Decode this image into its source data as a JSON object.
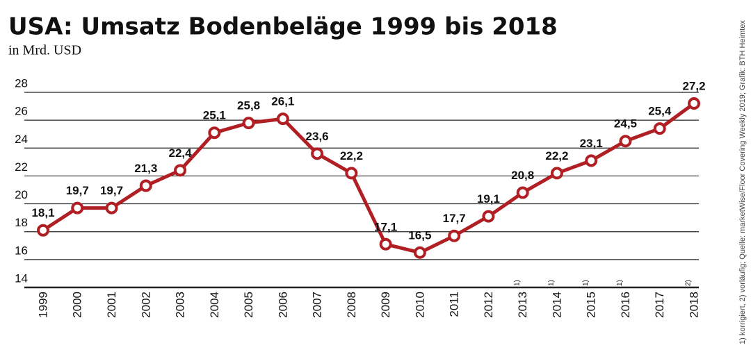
{
  "chart_data": {
    "type": "line",
    "title": "USA: Umsatz Bodenbeläge 1999 bis 2018",
    "subtitle": "in Mrd. USD",
    "source": "1) korrigiert, 2) vorläufig; Quelle: marketWise/Floor Covering Weekly 2019; Grafik: BTH Heimtex",
    "categories": [
      "1999",
      "2000",
      "2001",
      "2002",
      "2003",
      "2004",
      "2005",
      "2006",
      "2007",
      "2008",
      "2009",
      "2010",
      "2011",
      "2012",
      "2013",
      "2014",
      "2015",
      "2016",
      "2017",
      "2018"
    ],
    "category_notes": [
      null,
      null,
      null,
      null,
      null,
      null,
      null,
      null,
      null,
      null,
      null,
      null,
      null,
      null,
      "1)",
      "1)",
      "1)",
      "1)",
      null,
      "2)"
    ],
    "values": [
      18.1,
      19.7,
      19.7,
      21.3,
      22.4,
      25.1,
      25.8,
      26.1,
      23.6,
      22.2,
      17.1,
      16.5,
      17.7,
      19.1,
      20.8,
      22.2,
      23.1,
      24.5,
      25.4,
      27.2
    ],
    "value_labels": [
      "18,1",
      "19,7",
      "19,7",
      "21,3",
      "22,4",
      "25,1",
      "25,8",
      "26,1",
      "23,6",
      "22,2",
      "17,1",
      "16,5",
      "17,7",
      "19,1",
      "20,8",
      "22,2",
      "23,1",
      "24,5",
      "25,4",
      "27,2"
    ],
    "color": "#b01f24",
    "ylim": [
      14,
      28
    ],
    "yticks": [
      14,
      16,
      18,
      20,
      22,
      24,
      26,
      28
    ],
    "grid": true
  }
}
